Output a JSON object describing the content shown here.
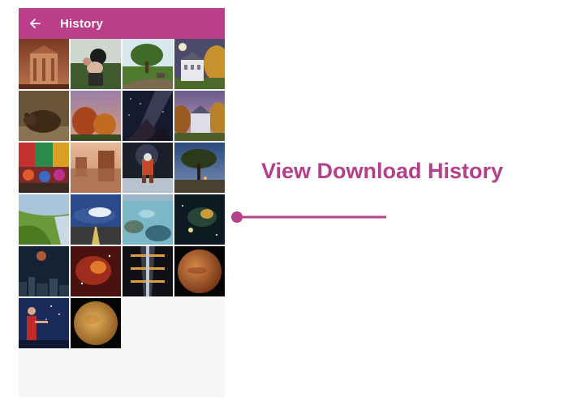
{
  "appbar": {
    "title": "History",
    "back_icon": "arrow-back-icon",
    "color": "#bb3e88"
  },
  "callout": {
    "text": "View Download History",
    "color": "#b3408a"
  },
  "thumbnails": [
    {
      "subject": "rock-carved-temple"
    },
    {
      "subject": "person-with-hands"
    },
    {
      "subject": "park-with-tree"
    },
    {
      "subject": "white-mansion-with-moon"
    },
    {
      "subject": "sleeping-bear"
    },
    {
      "subject": "autumn-trees-dusk"
    },
    {
      "subject": "milky-way-over-rocks"
    },
    {
      "subject": "mansion-at-dusk"
    },
    {
      "subject": "colorful-market"
    },
    {
      "subject": "desert-ruins-reflection"
    },
    {
      "subject": "astronaut-on-ice"
    },
    {
      "subject": "lone-tree-at-twilight"
    },
    {
      "subject": "green-coastal-hills"
    },
    {
      "subject": "storm-clouds-over-road"
    },
    {
      "subject": "coral-reef-shallows"
    },
    {
      "subject": "space-nebula-stars"
    },
    {
      "subject": "moon-over-city"
    },
    {
      "subject": "red-nebula"
    },
    {
      "subject": "space-station-interior"
    },
    {
      "subject": "planet-mars"
    },
    {
      "subject": "presenter-under-stars"
    },
    {
      "subject": "planet-venus"
    }
  ]
}
